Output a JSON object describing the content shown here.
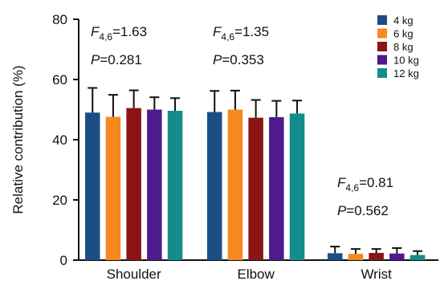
{
  "chart_data": {
    "type": "bar",
    "title": "",
    "xlabel": "",
    "ylabel": "Relative contribution (%)",
    "ylim": [
      0,
      80
    ],
    "yticks": [
      "0",
      "20",
      "40",
      "60",
      "80"
    ],
    "grid": false,
    "legend_position": "top-right",
    "categories": [
      "Shoulder",
      "Elbow",
      "Wrist"
    ],
    "series": [
      {
        "name": "4 kg",
        "color": "#1c4e86",
        "values": [
          49.0,
          49.2,
          2.3
        ],
        "errors": [
          8.2,
          7.0,
          2.2
        ]
      },
      {
        "name": "6 kg",
        "color": "#f5891f",
        "values": [
          47.6,
          50.0,
          2.1
        ],
        "errors": [
          7.3,
          6.3,
          1.6
        ]
      },
      {
        "name": "8 kg",
        "color": "#8b1414",
        "values": [
          50.5,
          47.3,
          2.4
        ],
        "errors": [
          5.9,
          5.9,
          1.3
        ]
      },
      {
        "name": "10 kg",
        "color": "#4f1a8c",
        "values": [
          50.0,
          47.5,
          2.2
        ],
        "errors": [
          4.1,
          5.4,
          1.8
        ]
      },
      {
        "name": "12 kg",
        "color": "#138d8a",
        "values": [
          49.6,
          48.7,
          1.7
        ],
        "errors": [
          4.2,
          4.3,
          1.3
        ]
      }
    ],
    "annotations": [
      {
        "category": "Shoulder",
        "f_label": "F",
        "f_sub": "4,6",
        "f_value": "=1.63",
        "p_label": "P",
        "p_value": "=0.281"
      },
      {
        "category": "Elbow",
        "f_label": "F",
        "f_sub": "4,6",
        "f_value": "=1.35",
        "p_label": "P",
        "p_value": "=0.353"
      },
      {
        "category": "Wrist",
        "f_label": "F",
        "f_sub": "4,6",
        "f_value": "=0.81",
        "p_label": "P",
        "p_value": "=0.562"
      }
    ]
  }
}
